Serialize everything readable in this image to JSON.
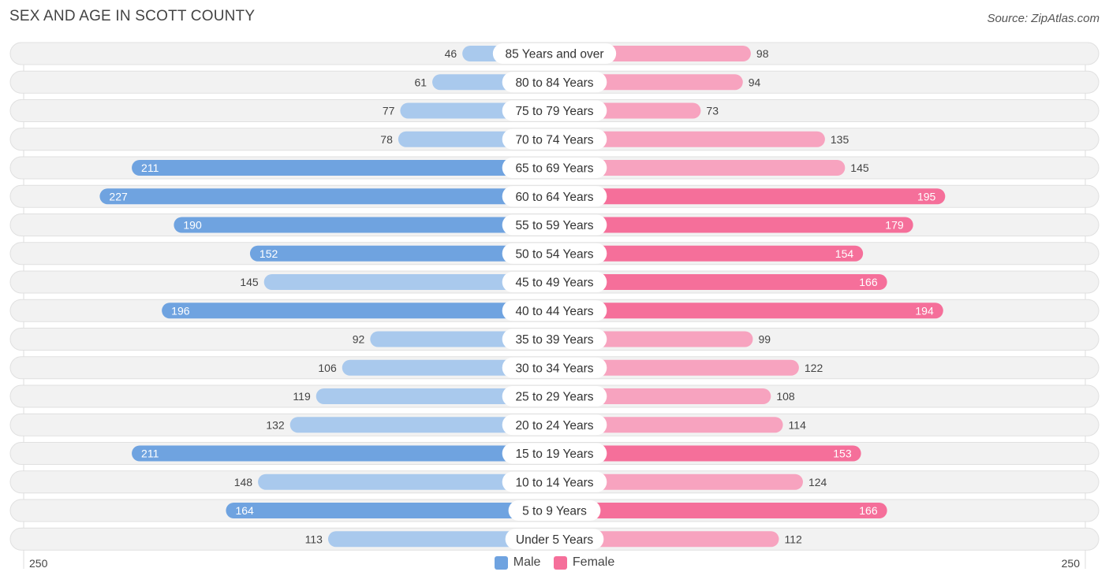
{
  "title": "SEX AND AGE IN SCOTT COUNTY",
  "source": "Source: ZipAtlas.com",
  "axis": {
    "left_label": "250",
    "right_label": "250"
  },
  "legend": [
    {
      "label": "Male",
      "color": "#6fa3e0"
    },
    {
      "label": "Female",
      "color": "#f56f9a"
    }
  ],
  "colors": {
    "male_strong": "#6fa3e0",
    "male_light": "#a9c9ed",
    "female_strong": "#f56f9a",
    "female_light": "#f7a3bf"
  },
  "chart_data": {
    "type": "bar",
    "orientation": "horizontal-diverging",
    "xlim": [
      0,
      250
    ],
    "categories": [
      "85 Years and over",
      "80 to 84 Years",
      "75 to 79 Years",
      "70 to 74 Years",
      "65 to 69 Years",
      "60 to 64 Years",
      "55 to 59 Years",
      "50 to 54 Years",
      "45 to 49 Years",
      "40 to 44 Years",
      "35 to 39 Years",
      "30 to 34 Years",
      "25 to 29 Years",
      "20 to 24 Years",
      "15 to 19 Years",
      "10 to 14 Years",
      "5 to 9 Years",
      "Under 5 Years"
    ],
    "series": [
      {
        "name": "Male",
        "values": [
          46,
          61,
          77,
          78,
          211,
          227,
          190,
          152,
          145,
          196,
          92,
          106,
          119,
          132,
          211,
          148,
          164,
          113
        ]
      },
      {
        "name": "Female",
        "values": [
          98,
          94,
          73,
          135,
          145,
          195,
          179,
          154,
          166,
          194,
          99,
          122,
          108,
          114,
          153,
          124,
          166,
          112
        ]
      }
    ]
  }
}
